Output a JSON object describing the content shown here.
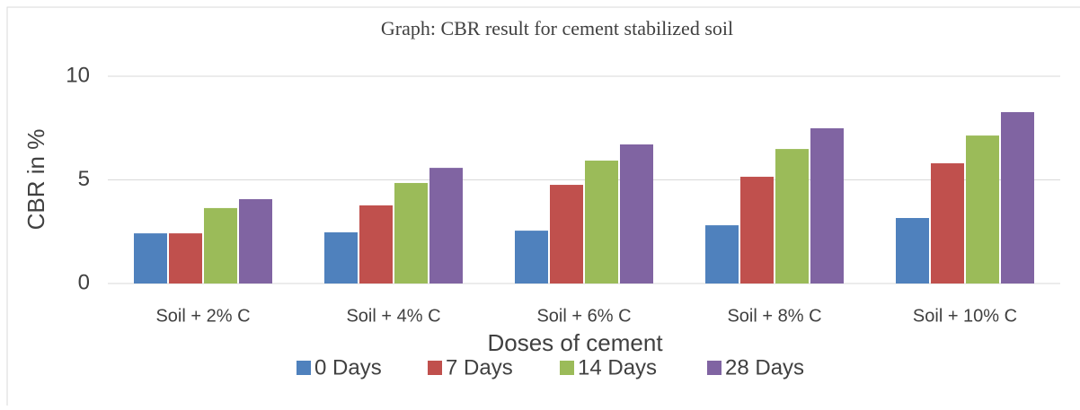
{
  "chart_data": {
    "type": "bar",
    "title": "Graph: CBR result for cement stabilized soil",
    "x_label": "Doses of cement",
    "y_label": "CBR in %",
    "categories": [
      "Soil + 2% C",
      "Soil + 4% C",
      "Soil + 6% C",
      "Soil + 8% C",
      "Soil + 10% C"
    ],
    "series": [
      {
        "name": "0 Days",
        "color": "#4f81bd",
        "values": [
          2.42,
          2.47,
          2.55,
          2.81,
          3.16
        ]
      },
      {
        "name": "7 Days",
        "color": "#c0504d",
        "values": [
          2.42,
          3.77,
          4.76,
          5.15,
          5.8
        ]
      },
      {
        "name": "14 Days",
        "color": "#9bbb59",
        "values": [
          3.64,
          4.85,
          5.93,
          6.49,
          7.14
        ]
      },
      {
        "name": "28 Days",
        "color": "#8064a2",
        "values": [
          4.07,
          5.58,
          6.71,
          7.49,
          8.27
        ]
      }
    ],
    "ylim": [
      0,
      10
    ],
    "yticks": [
      0,
      5,
      10
    ],
    "grid": true,
    "legend": "bottom"
  }
}
